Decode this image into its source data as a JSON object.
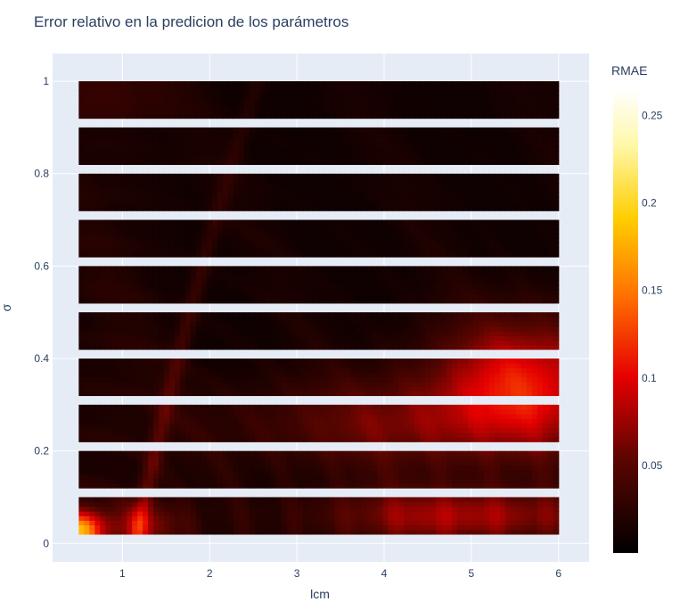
{
  "chart_data": {
    "type": "heatmap",
    "title": "Error relativo en la predicion de los parámetros",
    "xlabel": "lcm",
    "ylabel": "σ",
    "xlim": [
      0.2,
      6.35
    ],
    "ylim": [
      -0.04,
      1.06
    ],
    "x_ticks": [
      "1",
      "2",
      "3",
      "4",
      "5",
      "6"
    ],
    "y_ticks": [
      "0",
      "0.2",
      "0.4",
      "0.6",
      "0.8",
      "1"
    ],
    "x_range": [
      0.5,
      6.0
    ],
    "bands": [
      {
        "y": [
          0.02,
          0.1
        ],
        "desc": "high error at bottom-left and right"
      },
      {
        "y": [
          0.12,
          0.2
        ]
      },
      {
        "y": [
          0.22,
          0.3
        ]
      },
      {
        "y": [
          0.32,
          0.4
        ]
      },
      {
        "y": [
          0.42,
          0.5
        ]
      },
      {
        "y": [
          0.52,
          0.6
        ]
      },
      {
        "y": [
          0.62,
          0.7
        ]
      },
      {
        "y": [
          0.72,
          0.8
        ]
      },
      {
        "y": [
          0.82,
          0.9
        ]
      },
      {
        "y": [
          0.92,
          1.0
        ]
      }
    ],
    "colorbar": {
      "title": "RMAE",
      "ticks": [
        "0.05",
        "0.1",
        "0.15",
        "0.2",
        "0.25"
      ],
      "tick_values": [
        0.05,
        0.1,
        0.15,
        0.2,
        0.25
      ],
      "range": [
        0.0,
        0.265
      ],
      "colorscale": [
        "#000000",
        "#800000",
        "#ff0000",
        "#ff8000",
        "#ffd000",
        "#ffffe0",
        "#ffffff"
      ]
    },
    "grid": true,
    "background": "#e5ecf6"
  }
}
